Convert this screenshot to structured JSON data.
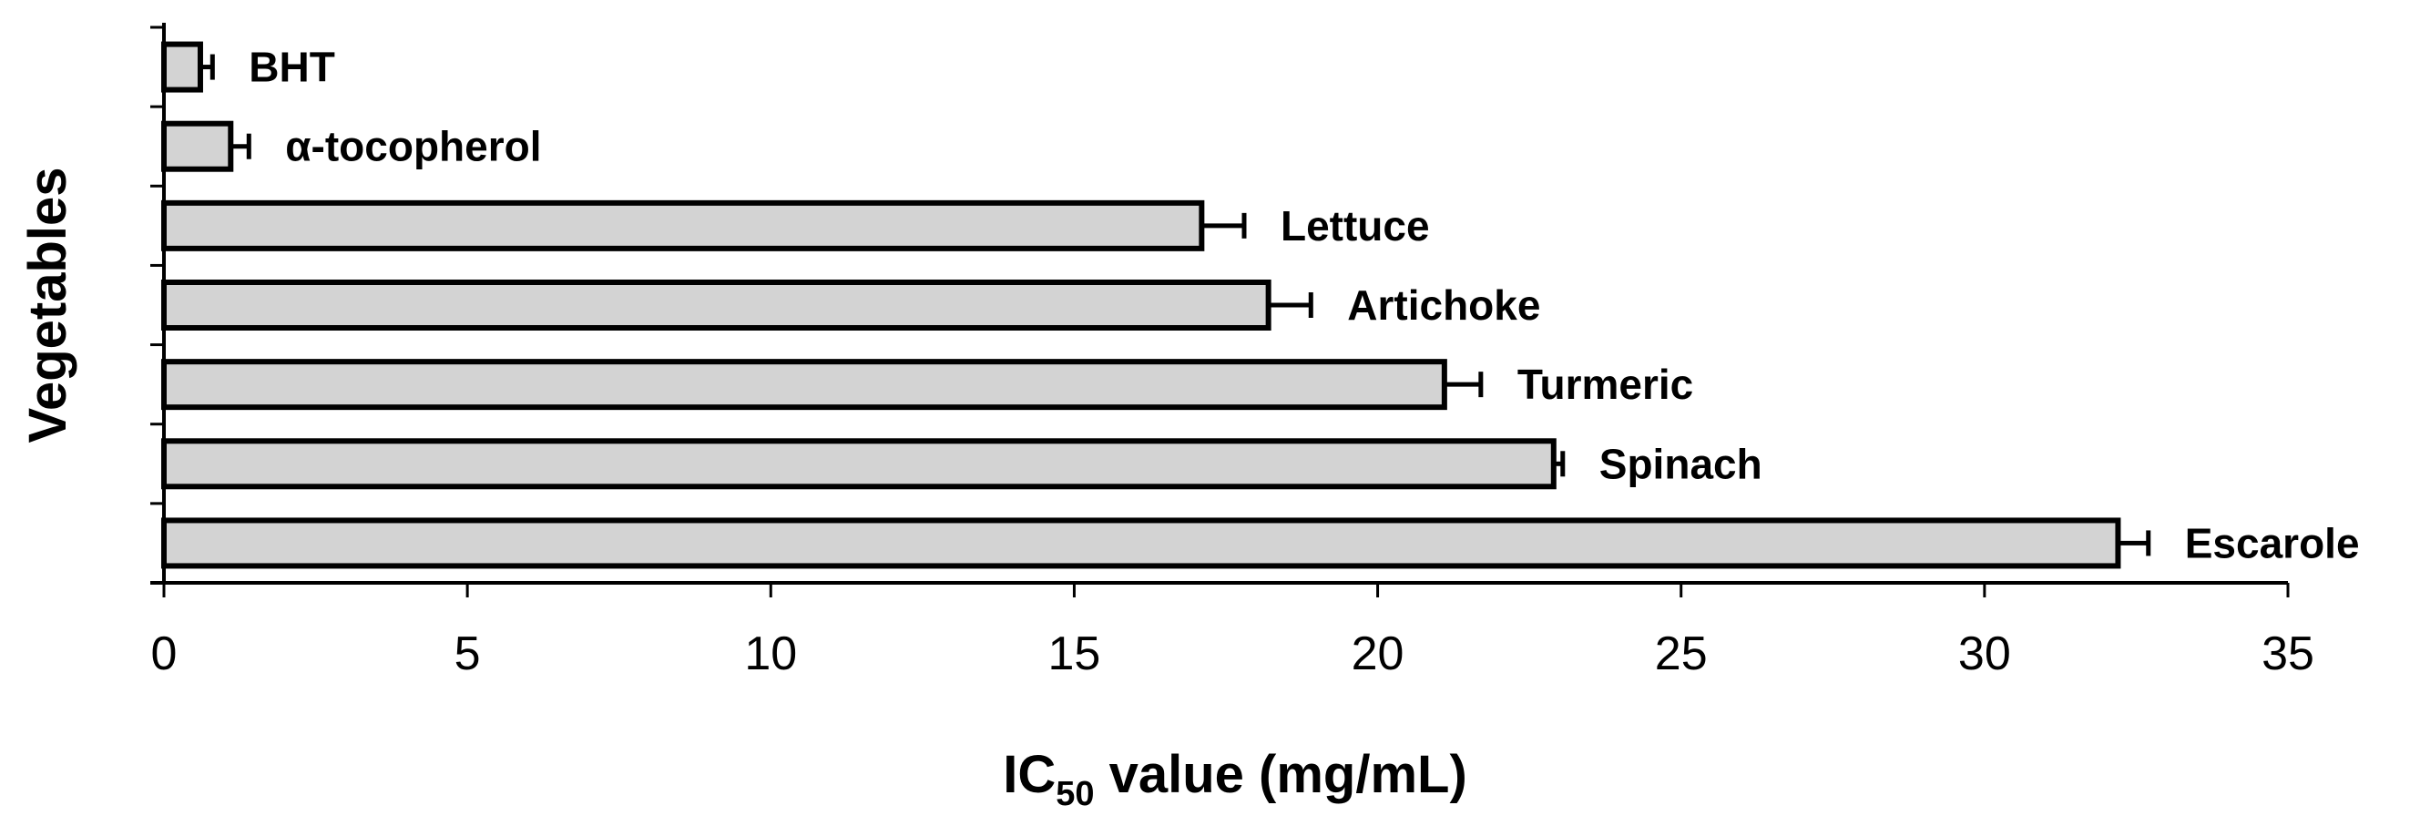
{
  "chart_data": {
    "type": "bar",
    "orientation": "horizontal",
    "categories": [
      "BHT",
      "α-tocopherol",
      "Lettuce",
      "Artichoke",
      "Turmeric",
      "Spinach",
      "Escarole"
    ],
    "values": [
      0.6,
      1.1,
      17.1,
      18.2,
      21.1,
      22.9,
      32.2
    ],
    "errors": [
      0.2,
      0.3,
      0.7,
      0.7,
      0.6,
      0.15,
      0.5
    ],
    "xlabel_main": "IC",
    "xlabel_sub": "50",
    "xlabel_rest": " value (mg/mL)",
    "ylabel": "Vegetables",
    "xlim": [
      0,
      35
    ],
    "xticks": [
      0,
      5,
      10,
      15,
      20,
      25,
      30,
      35
    ],
    "grid": false,
    "bar_color": "#d3d3d3",
    "edge_color": "#000000"
  }
}
